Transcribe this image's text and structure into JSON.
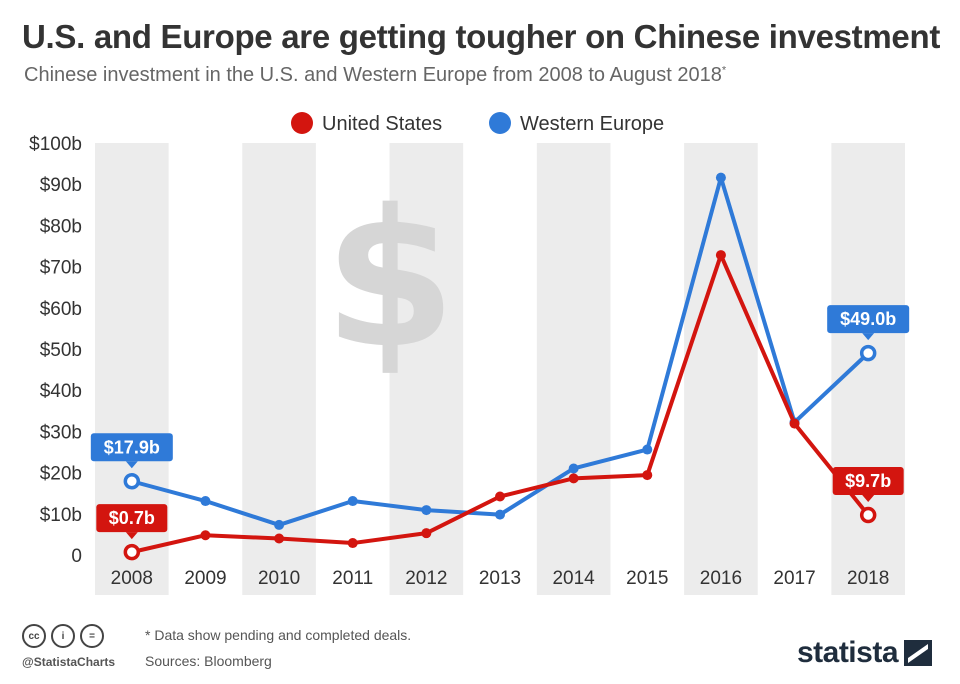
{
  "header": {
    "title": "U.S. and Europe are getting tougher on Chinese investment",
    "subtitle": "Chinese investment in the U.S. and Western Europe from 2008 to August 2018",
    "subtitle_mark": "*"
  },
  "legend": {
    "us_label": "United States",
    "eu_label": "Western Europe"
  },
  "background_icon": "dollar-sign-icon",
  "colors": {
    "us": "#d3150f",
    "eu": "#2f7ad8",
    "band": "#ececec",
    "axis_text": "#333333"
  },
  "chart_data": {
    "type": "line",
    "title": "Chinese investment in the U.S. and Western Europe from 2008 to August 2018",
    "categories": [
      "2008",
      "2009",
      "2010",
      "2011",
      "2012",
      "2013",
      "2014",
      "2015",
      "2016",
      "2017",
      "2018"
    ],
    "ylim": [
      0,
      100
    ],
    "yticks": [
      0,
      10,
      20,
      30,
      40,
      50,
      60,
      70,
      80,
      90,
      100
    ],
    "ytick_labels": [
      "0",
      "$10b",
      "$20b",
      "$30b",
      "$40b",
      "$50b",
      "$60b",
      "$70b",
      "$80b",
      "$90b",
      "$100b"
    ],
    "series": [
      {
        "name": "United States",
        "values": [
          0.7,
          4.8,
          4.0,
          2.9,
          5.3,
          14.2,
          18.6,
          19.4,
          72.8,
          31.9,
          9.7
        ]
      },
      {
        "name": "Western Europe",
        "values": [
          17.9,
          13.1,
          7.3,
          13.1,
          10.9,
          9.8,
          21.0,
          25.6,
          91.6,
          32.2,
          49.0
        ]
      }
    ],
    "annotations": [
      {
        "series": "Western Europe",
        "category": "2008",
        "text": "$17.9b",
        "side": "above"
      },
      {
        "series": "United States",
        "category": "2008",
        "text": "$0.7b",
        "side": "above"
      },
      {
        "series": "Western Europe",
        "category": "2018",
        "text": "$49.0b",
        "side": "above"
      },
      {
        "series": "United States",
        "category": "2018",
        "text": "$9.7b",
        "side": "above"
      }
    ],
    "legend_position": "top-center",
    "grid": false
  },
  "footer": {
    "note": "* Data show pending and completed deals.",
    "source": "Sources: Bloomberg",
    "handle": "@StatistaCharts",
    "brand": "statista",
    "cc_icons": [
      "cc-icon",
      "by-icon",
      "nd-icon"
    ],
    "cc_glyphs": [
      "cc",
      "i",
      "="
    ]
  }
}
